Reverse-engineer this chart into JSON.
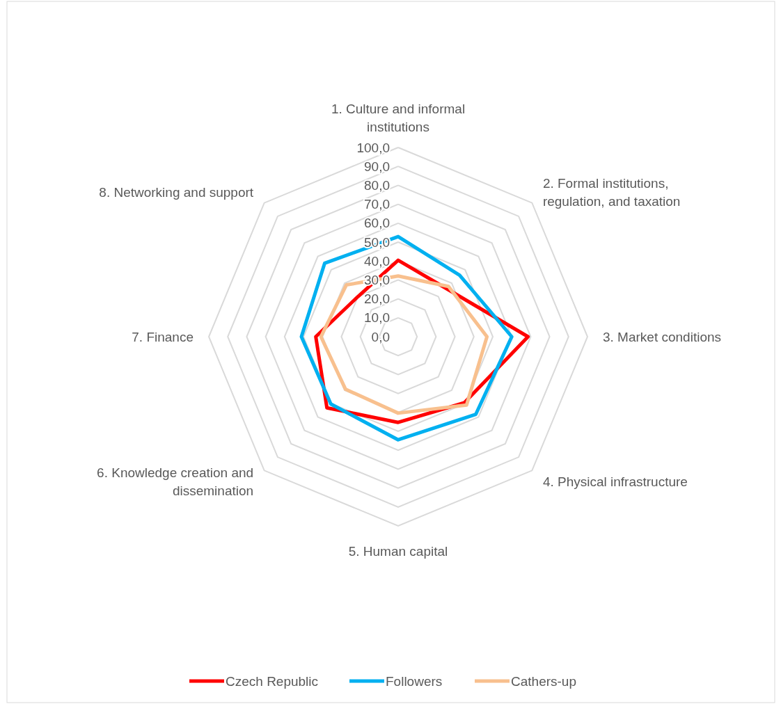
{
  "chart_data": {
    "type": "radar",
    "categories": [
      "1. Culture and informal institutions",
      "2. Formal institutions, regulation, and taxation",
      "3. Market conditions",
      "4. Physical infrastructure",
      "5. Human capital",
      "6. Knowledge creation and dissemination",
      "7. Finance",
      "8. Networking and support"
    ],
    "series": [
      {
        "name": "Czech Republic",
        "color": "#ff0000",
        "values": [
          40.4,
          36,
          68.6,
          49.4,
          45.3,
          53.2,
          43.5,
          30
        ]
      },
      {
        "name": "Followers",
        "color": "#00b0f0",
        "values": [
          52.9,
          45.9,
          60,
          58,
          54.5,
          50.3,
          51.1,
          54.9
        ]
      },
      {
        "name": "Cathers-up",
        "color": "#f8c08e",
        "values": [
          32.1,
          37.6,
          46.9,
          51.1,
          40.4,
          39.3,
          40.8,
          38.7
        ]
      }
    ],
    "ylim": [
      0,
      100
    ],
    "yticks": [
      {
        "value": 0,
        "label": "0,0"
      },
      {
        "value": 10,
        "label": "10,0"
      },
      {
        "value": 20,
        "label": "20,0"
      },
      {
        "value": 30,
        "label": "30,0"
      },
      {
        "value": 40,
        "label": "40,0"
      },
      {
        "value": 50,
        "label": "50,0"
      },
      {
        "value": 60,
        "label": "60,0"
      },
      {
        "value": 70,
        "label": "70,0"
      },
      {
        "value": 80,
        "label": "80,0"
      },
      {
        "value": 90,
        "label": "90,0"
      },
      {
        "value": 100,
        "label": "100,0"
      }
    ],
    "grid": true,
    "legend": "bottom",
    "line_style": "solid",
    "marker": "none"
  }
}
